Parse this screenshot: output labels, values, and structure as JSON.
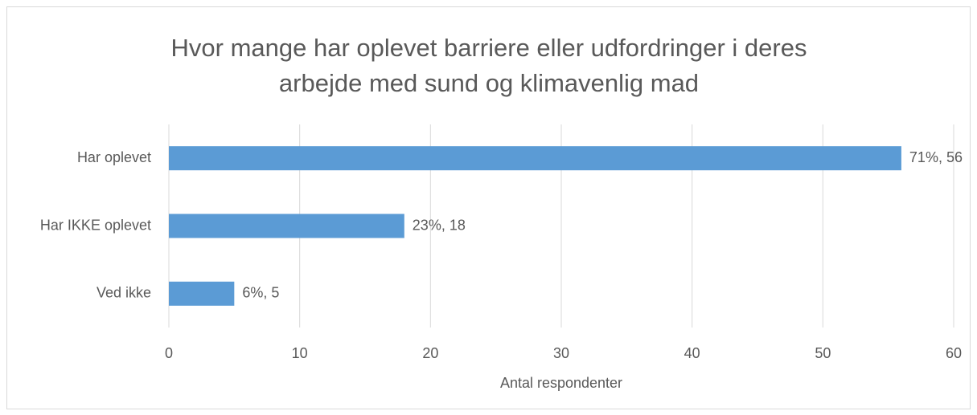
{
  "chart_data": {
    "type": "hbar",
    "title": "Hvor mange har oplevet barriere eller udfordringer i deres arbejde med sund og klimavenlig mad",
    "x_label": "Antal respondenter",
    "categories": [
      "Har oplevet",
      "Har IKKE oplevet",
      "Ved ikke"
    ],
    "values": [
      56,
      18,
      5
    ],
    "value_labels": [
      "71%, 56",
      "23%, 18",
      "6%, 5"
    ],
    "color": "#5b9bd5",
    "xlim": [
      0,
      60
    ],
    "xticks": [
      0,
      10,
      20,
      30,
      40,
      50,
      60
    ],
    "grid": true
  }
}
